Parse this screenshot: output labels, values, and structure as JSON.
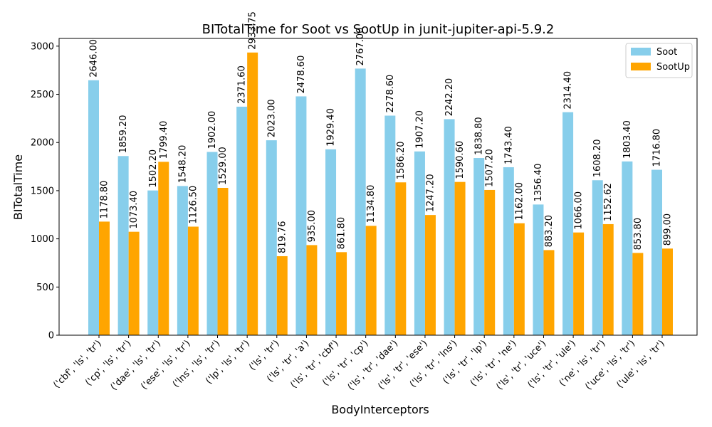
{
  "chart_data": {
    "type": "bar",
    "title": "BITotalTime for Soot vs SootUp in junit-jupiter-api-5.9.2",
    "xlabel": "BodyInterceptors",
    "ylabel": "BITotalTime",
    "ylim": [
      0,
      3080
    ],
    "yticks": [
      0,
      500,
      1000,
      1500,
      2000,
      2500,
      3000
    ],
    "grid": false,
    "legend_position": "top-right",
    "categories": [
      "('cbf', 'ls', 'tr')",
      "('cp', 'ls', 'tr')",
      "('dae', 'ls', 'tr')",
      "('ese', 'ls', 'tr')",
      "('lns', 'ls', 'tr')",
      "('lp', 'ls', 'tr')",
      "('ls', 'tr')",
      "('ls', 'tr', 'a')",
      "('ls', 'tr', 'cbf')",
      "('ls', 'tr', 'cp')",
      "('ls', 'tr', 'dae')",
      "('ls', 'tr', 'ese')",
      "('ls', 'tr', 'lns')",
      "('ls', 'tr', 'lp')",
      "('ls', 'tr', 'ne')",
      "('ls', 'tr', 'uce')",
      "('ls', 'tr', 'ule')",
      "('ne', 'ls', 'tr')",
      "('uce', 'ls', 'tr')",
      "('ule', 'ls', 'tr')"
    ],
    "series": [
      {
        "name": "Soot",
        "color": "#87ceeb",
        "values": [
          2646.0,
          1859.2,
          1502.2,
          1548.2,
          1902.0,
          2371.6,
          2023.0,
          2478.6,
          1929.4,
          2767.0,
          2278.6,
          1907.2,
          2242.2,
          1838.8,
          1743.4,
          1356.4,
          2314.4,
          1608.2,
          1803.4,
          1716.8
        ],
        "labels": [
          "2646.00",
          "1859.20",
          "1502.20",
          "1548.20",
          "1902.00",
          "2371.60",
          "2023.00",
          "2478.60",
          "1929.40",
          "2767.00",
          "2278.60",
          "1907.20",
          "2242.20",
          "1838.80",
          "1743.40",
          "1356.40",
          "2314.40",
          "1608.20",
          "1803.40",
          "1716.80"
        ]
      },
      {
        "name": "SootUp",
        "color": "#ffa500",
        "values": [
          1178.8,
          1073.4,
          1799.4,
          1126.5,
          1529.0,
          2933.75,
          819.76,
          935.0,
          861.8,
          1134.8,
          1586.2,
          1247.2,
          1590.6,
          1507.2,
          1162.0,
          883.2,
          1066.0,
          1152.62,
          853.8,
          899.0
        ],
        "labels": [
          "1178.80",
          "1073.40",
          "1799.40",
          "1126.50",
          "1529.00",
          "2933.75",
          "819.76",
          "935.00",
          "861.80",
          "1134.80",
          "1586.20",
          "1247.20",
          "1590.60",
          "1507.20",
          "1162.00",
          "883.20",
          "1066.00",
          "1152.62",
          "853.80",
          "899.00"
        ]
      }
    ]
  }
}
